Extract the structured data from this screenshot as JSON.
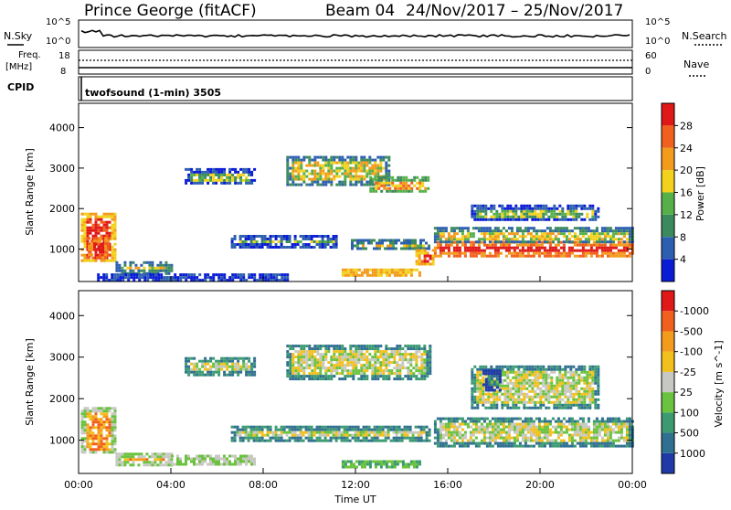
{
  "header": {
    "title": "Prince George (fitACF)",
    "beam": "Beam 04",
    "date_range": "24/Nov/2017 – 25/Nov/2017"
  },
  "status_panels": {
    "nsky_label": "N.Sky",
    "nsearch_label": "N.Search",
    "nsky_ticks": [
      "10^5",
      "10^0"
    ],
    "nsearch_ticks": [
      "10^5",
      "10^0"
    ],
    "freq_label_line1": "Freq.",
    "freq_label_line2": "[MHz]",
    "freq_ticks": [
      "18",
      "8"
    ],
    "nave_label": "Nave",
    "nave_ticks": [
      "60",
      "0"
    ],
    "cpid_label": "CPID",
    "cpid_text": "twofsound (1-min) 3505"
  },
  "chart_data": [
    {
      "type": "heatmap",
      "name": "power",
      "ylabel": "Slant Range [km]",
      "xlabel": "",
      "x_ticks": [
        "00:00",
        "04:00",
        "08:00",
        "12:00",
        "16:00",
        "20:00",
        "00:00"
      ],
      "y_ticks": [
        "1000",
        "2000",
        "3000",
        "4000"
      ],
      "ylim": [
        200,
        4600
      ],
      "xlim_hours": [
        0,
        24
      ],
      "colorbar": {
        "label": "Power [dB]",
        "ticks": [
          "4",
          "8",
          "12",
          "16",
          "20",
          "24",
          "28"
        ],
        "colors": [
          "#0a1bd6",
          "#2d5fb0",
          "#3b8a5e",
          "#56b04a",
          "#f2d21d",
          "#f29b1d",
          "#f2601d",
          "#e01818"
        ]
      },
      "regions": [
        {
          "x0": 0.1,
          "x1": 1.6,
          "y0": 700,
          "y1": 1900,
          "level": 7
        },
        {
          "x0": 0.4,
          "x1": 1.3,
          "y0": 800,
          "y1": 1300,
          "level": 8
        },
        {
          "x0": 1.6,
          "x1": 4.0,
          "y0": 400,
          "y1": 700,
          "level": 4
        },
        {
          "x0": 4.6,
          "x1": 7.6,
          "y0": 2600,
          "y1": 3000,
          "level": 3
        },
        {
          "x0": 9.0,
          "x1": 13.4,
          "y0": 2600,
          "y1": 3300,
          "level": 4
        },
        {
          "x0": 12.6,
          "x1": 15.2,
          "y0": 2400,
          "y1": 2800,
          "level": 5
        },
        {
          "x0": 6.6,
          "x1": 11.2,
          "y0": 1050,
          "y1": 1350,
          "level": 3
        },
        {
          "x0": 11.8,
          "x1": 15.2,
          "y0": 1000,
          "y1": 1250,
          "level": 4
        },
        {
          "x0": 14.6,
          "x1": 15.4,
          "y0": 600,
          "y1": 1000,
          "level": 7
        },
        {
          "x0": 11.4,
          "x1": 14.8,
          "y0": 380,
          "y1": 520,
          "level": 7
        },
        {
          "x0": 15.4,
          "x1": 24.0,
          "y0": 850,
          "y1": 1200,
          "level": 8
        },
        {
          "x0": 15.4,
          "x1": 24.0,
          "y0": 1150,
          "y1": 1550,
          "level": 4
        },
        {
          "x0": 17.0,
          "x1": 22.5,
          "y0": 1700,
          "y1": 2100,
          "level": 3
        },
        {
          "x0": 0.8,
          "x1": 9.0,
          "y0": 250,
          "y1": 400,
          "level": 3
        }
      ]
    },
    {
      "type": "heatmap",
      "name": "velocity",
      "ylabel": "Slant Range [km]",
      "xlabel": "Time UT",
      "x_ticks": [
        "00:00",
        "04:00",
        "08:00",
        "12:00",
        "16:00",
        "20:00",
        "00:00"
      ],
      "y_ticks": [
        "1000",
        "2000",
        "3000",
        "4000"
      ],
      "ylim": [
        200,
        4600
      ],
      "xlim_hours": [
        0,
        24
      ],
      "colorbar": {
        "label": "Velocity [m s^-1]",
        "ticks": [
          "1000",
          "500",
          "100",
          "25",
          "-25",
          "-100",
          "-500",
          "-1000"
        ],
        "colors": [
          "#1f3aa8",
          "#2f6f8f",
          "#3b9a72",
          "#6ac23e",
          "#c8c8c2",
          "#f2c01d",
          "#f29b1d",
          "#f2601d",
          "#e01818"
        ]
      },
      "regions": [
        {
          "x0": 0.1,
          "x1": 1.6,
          "y0": 700,
          "y1": 1800,
          "level": 6
        },
        {
          "x0": 1.6,
          "x1": 4.0,
          "y0": 400,
          "y1": 700,
          "level": 6
        },
        {
          "x0": 4.0,
          "x1": 7.6,
          "y0": 450,
          "y1": 650,
          "level": 6
        },
        {
          "x0": 4.6,
          "x1": 7.6,
          "y0": 2600,
          "y1": 3000,
          "level": 4
        },
        {
          "x0": 9.0,
          "x1": 15.2,
          "y0": 2500,
          "y1": 3300,
          "level": 4
        },
        {
          "x0": 6.6,
          "x1": 15.2,
          "y0": 1000,
          "y1": 1350,
          "level": 4
        },
        {
          "x0": 15.4,
          "x1": 24.0,
          "y0": 850,
          "y1": 1550,
          "level": 4
        },
        {
          "x0": 17.0,
          "x1": 22.5,
          "y0": 1800,
          "y1": 2800,
          "level": 4
        },
        {
          "x0": 17.5,
          "x1": 18.3,
          "y0": 2200,
          "y1": 2700,
          "level": 2
        },
        {
          "x0": 11.4,
          "x1": 14.8,
          "y0": 380,
          "y1": 520,
          "level": 5
        }
      ]
    }
  ]
}
